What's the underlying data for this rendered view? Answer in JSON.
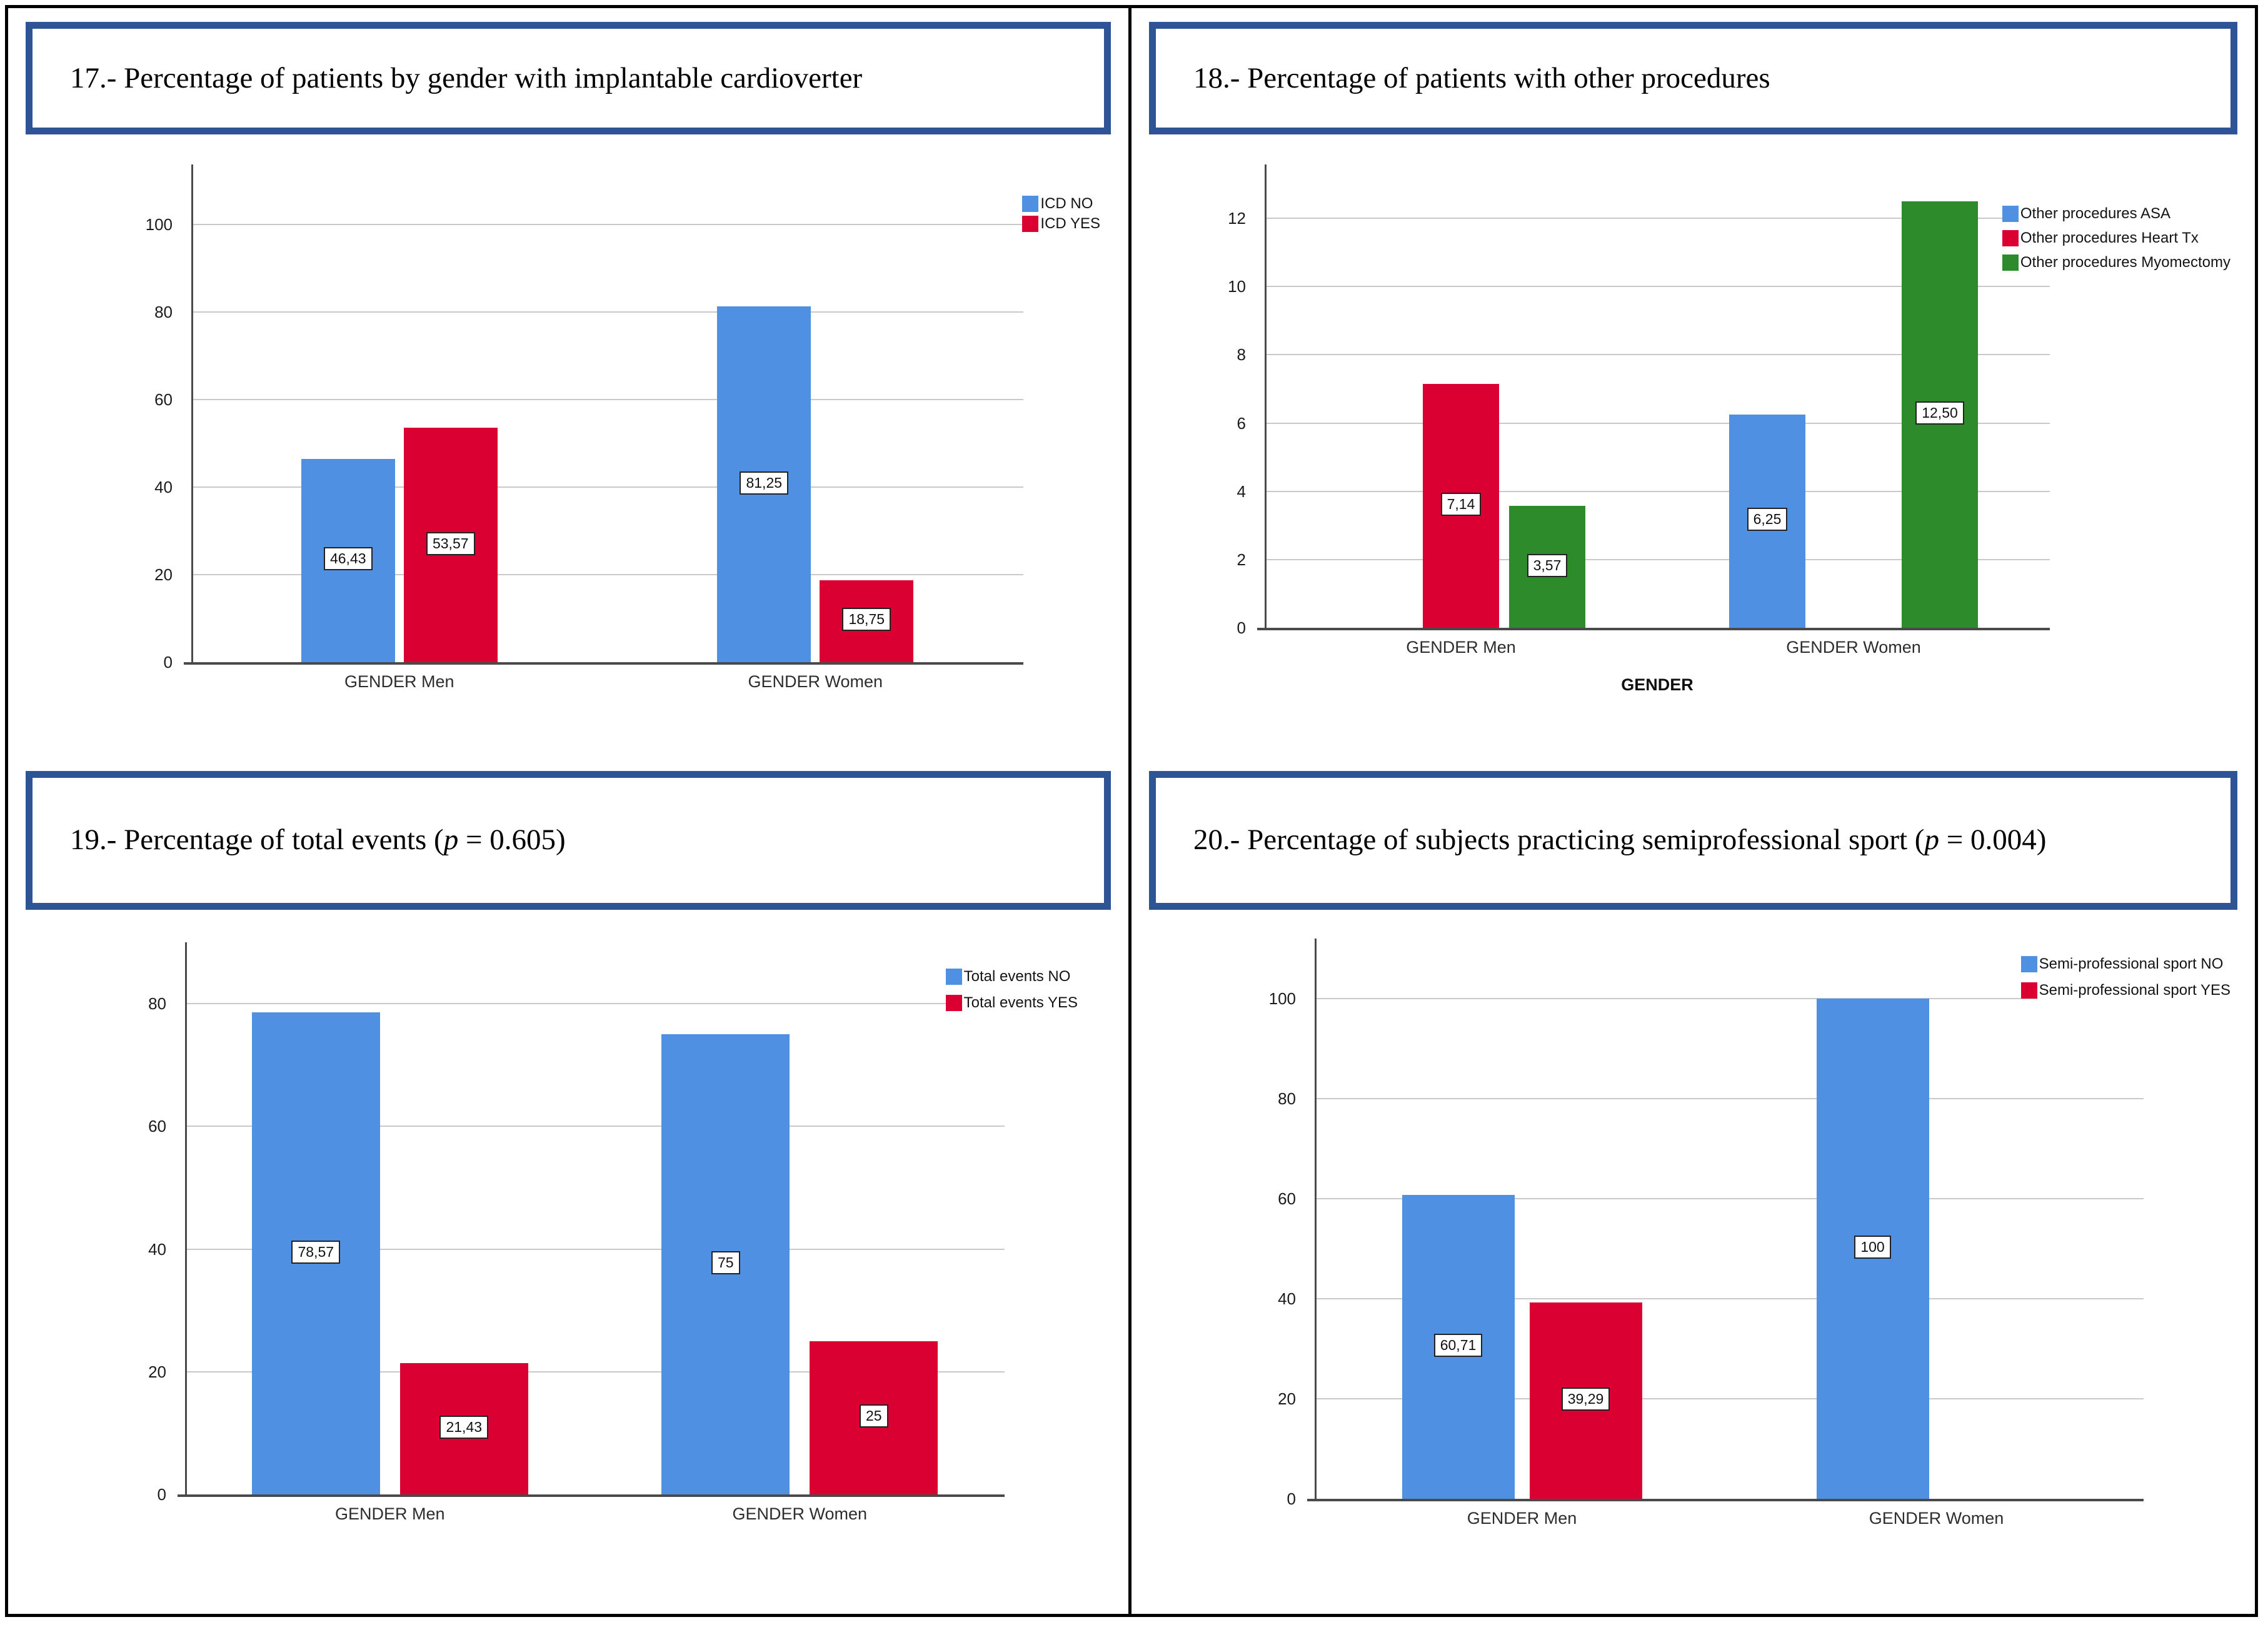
{
  "panels": [
    {
      "id": "17",
      "title_parts": [
        {
          "text": "17.- Percentage of patients by gender with implantable cardioverter",
          "italic": false
        }
      ]
    },
    {
      "id": "18",
      "title_parts": [
        {
          "text": "18.- Percentage of patients with other procedures",
          "italic": false
        }
      ]
    },
    {
      "id": "19",
      "title_parts": [
        {
          "text": "19.- Percentage of total events (",
          "italic": false
        },
        {
          "text": "p",
          "italic": true
        },
        {
          "text": " = 0.605)",
          "italic": false
        }
      ]
    },
    {
      "id": "20",
      "title_parts": [
        {
          "text": "20.- Percentage of subjects practicing semiprofessional sport (",
          "italic": false
        },
        {
          "text": "p",
          "italic": true
        },
        {
          "text": " = 0.004)",
          "italic": false
        }
      ]
    }
  ],
  "chart_data": [
    {
      "type": "bar",
      "panel": "17",
      "title": "17.- Percentage of patients by gender with implantable cardioverter",
      "categories": [
        "GENDER Men",
        "GENDER Women"
      ],
      "series": [
        {
          "name": "ICD NO",
          "color": "#4F90E2",
          "values": [
            46.43,
            81.25
          ],
          "labels": [
            "46,43",
            "81,25"
          ]
        },
        {
          "name": "ICD YES",
          "color": "#DB0032",
          "values": [
            53.57,
            18.75
          ],
          "labels": [
            "53,57",
            "18,75"
          ]
        }
      ],
      "xlabel": "",
      "ylabel": "",
      "ylim": [
        0,
        100
      ],
      "yticks": [
        0,
        20,
        40,
        60,
        80,
        100
      ],
      "grid": true,
      "legend_position": "top-right"
    },
    {
      "type": "bar",
      "panel": "18",
      "title": "18.- Percentage of patients with other procedures",
      "categories": [
        "GENDER Men",
        "GENDER Women"
      ],
      "series": [
        {
          "name": "Other procedures ASA",
          "color": "#4F90E2",
          "values": [
            0,
            6.25
          ],
          "labels": [
            null,
            "6,25"
          ]
        },
        {
          "name": "Other procedures Heart Tx",
          "color": "#DB0032",
          "values": [
            7.14,
            0
          ],
          "labels": [
            "7,14",
            null
          ]
        },
        {
          "name": "Other procedures Myomectomy",
          "color": "#2E8B2C",
          "values": [
            3.57,
            12.5
          ],
          "labels": [
            "3,57",
            "12,50"
          ]
        }
      ],
      "xlabel": "GENDER",
      "ylabel": "",
      "ylim": [
        0,
        12
      ],
      "yticks": [
        0,
        2,
        4,
        6,
        8,
        10,
        12
      ],
      "grid": true,
      "legend_position": "top-right"
    },
    {
      "type": "bar",
      "panel": "19",
      "title": "19.- Percentage of total events (p = 0.605)",
      "categories": [
        "GENDER Men",
        "GENDER Women"
      ],
      "series": [
        {
          "name": "Total events NO",
          "color": "#4F90E2",
          "values": [
            78.57,
            75
          ],
          "labels": [
            "78,57",
            "75"
          ]
        },
        {
          "name": "Total events YES",
          "color": "#DB0032",
          "values": [
            21.43,
            25
          ],
          "labels": [
            "21,43",
            "25"
          ]
        }
      ],
      "xlabel": "",
      "ylabel": "",
      "ylim": [
        0,
        80
      ],
      "yticks": [
        0,
        20,
        40,
        60,
        80
      ],
      "grid": true,
      "legend_position": "top-right"
    },
    {
      "type": "bar",
      "panel": "20",
      "title": "20.- Percentage of subjects practicing semiprofessional sport (p = 0.004)",
      "categories": [
        "GENDER Men",
        "GENDER Women"
      ],
      "series": [
        {
          "name": "Semi-professional sport NO",
          "color": "#4F90E2",
          "values": [
            60.71,
            100
          ],
          "labels": [
            "60,71",
            "100"
          ]
        },
        {
          "name": "Semi-professional sport YES",
          "color": "#DB0032",
          "values": [
            39.29,
            0
          ],
          "labels": [
            "39,29",
            null
          ]
        }
      ],
      "xlabel": "",
      "ylabel": "",
      "ylim": [
        0,
        100
      ],
      "yticks": [
        0,
        20,
        40,
        60,
        80,
        100
      ],
      "grid": true,
      "legend_position": "top-right"
    }
  ],
  "colors": {
    "bar_blue": "#4F90E2",
    "bar_red": "#DB0032",
    "bar_green": "#2E8B2C",
    "title_box_border": "#2F5496",
    "gridline": "#C9C9C9",
    "axis": "#4A4A4A"
  }
}
